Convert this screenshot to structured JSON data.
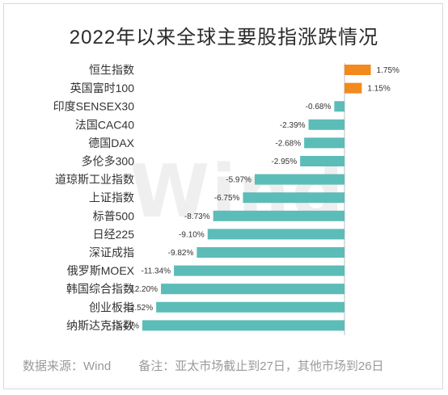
{
  "chart_data": {
    "type": "bar",
    "orientation": "horizontal",
    "title": "2022年以来全球主要股指涨跌情况",
    "categories": [
      "恒生指数",
      "英国富时100",
      "印度SENSEX30",
      "法国CAC40",
      "德国DAX",
      "多伦多300",
      "道琼斯工业指数",
      "上证指数",
      "标普500",
      "日经225",
      "深证成指",
      "俄罗斯MOEX",
      "韩国综合指数",
      "创业板指",
      "纳斯达克指数"
    ],
    "values": [
      1.75,
      1.15,
      -0.68,
      -2.39,
      -2.68,
      -2.95,
      -5.97,
      -6.75,
      -8.73,
      -9.1,
      -9.82,
      -11.34,
      -12.2,
      -12.52,
      -13.44
    ],
    "value_labels": [
      "1.75%",
      "1.15%",
      "-0.68%",
      "-2.39%",
      "-2.68%",
      "-2.95%",
      "-5.97%",
      "-6.75%",
      "-8.73%",
      "-9.10%",
      "-9.82%",
      "-11.34%",
      "-12.20%",
      "-12.52%",
      "-13.44%"
    ],
    "colors": {
      "positive": "#f28a1e",
      "negative": "#5cbcb8"
    },
    "grid": false,
    "legend": "none"
  },
  "watermark": "Wind",
  "footer": {
    "source": "数据来源：Wind",
    "note": "备注：亚太市场截止到27日，其他市场到26日"
  }
}
